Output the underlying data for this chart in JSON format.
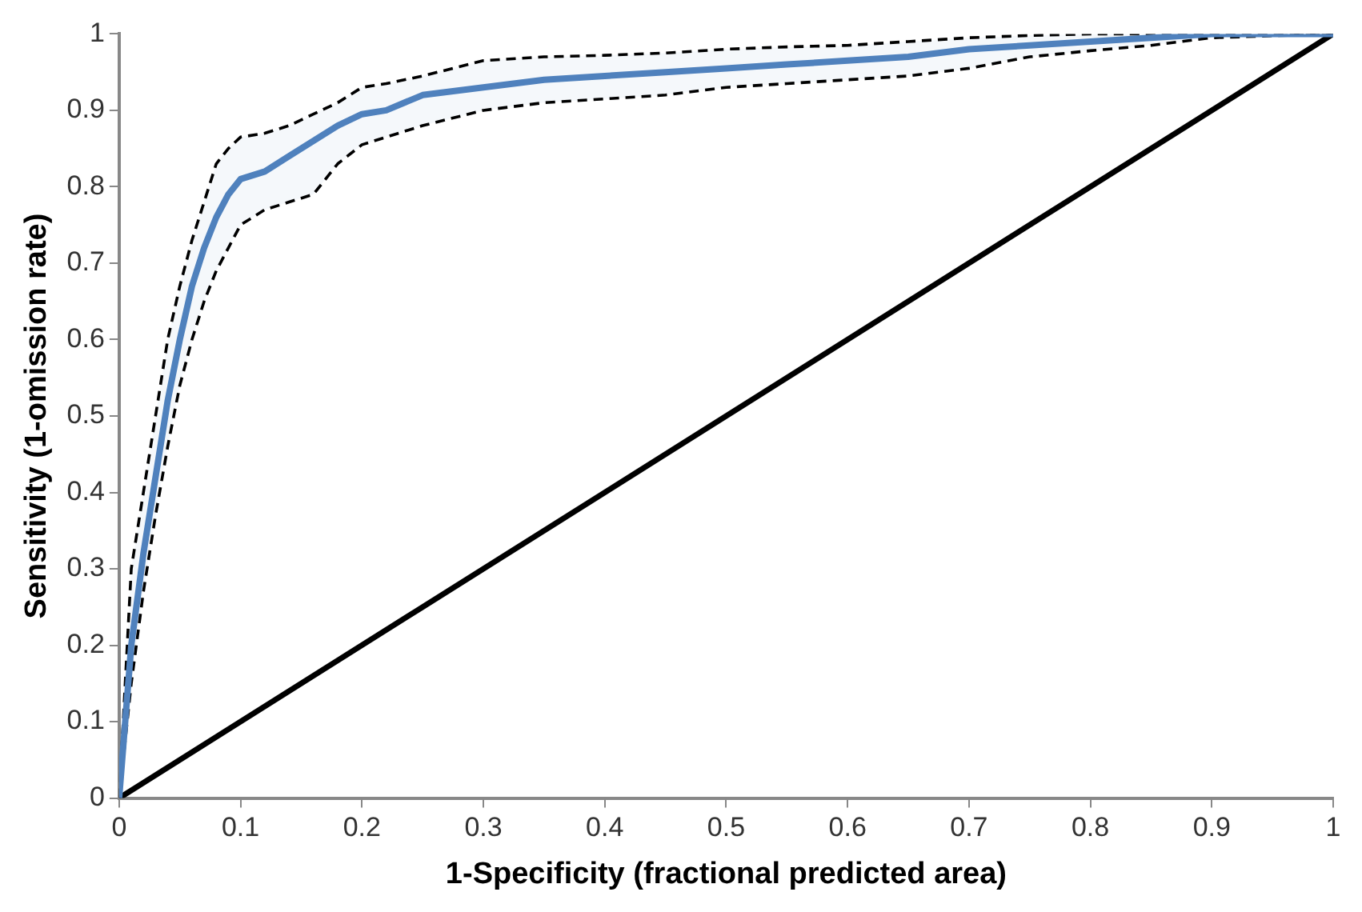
{
  "chart_data": {
    "type": "line",
    "xlabel": "1-Specificity (fractional predicted area)",
    "ylabel": "Sensitivity (1-omission rate)",
    "xlim": [
      0,
      1
    ],
    "ylim": [
      0,
      1
    ],
    "xticks": [
      0,
      0.1,
      0.2,
      0.3,
      0.4,
      0.5,
      0.6,
      0.7,
      0.8,
      0.9,
      1
    ],
    "yticks": [
      0,
      0.1,
      0.2,
      0.3,
      0.4,
      0.5,
      0.6,
      0.7,
      0.8,
      0.9,
      1
    ],
    "grid": false,
    "legend": false,
    "marker": "none",
    "series": [
      {
        "color": "#4f81bd",
        "line_style": "solid",
        "x": [
          0,
          0.01,
          0.02,
          0.03,
          0.04,
          0.05,
          0.06,
          0.07,
          0.08,
          0.09,
          0.1,
          0.12,
          0.14,
          0.16,
          0.18,
          0.2,
          0.22,
          0.25,
          0.3,
          0.35,
          0.4,
          0.45,
          0.5,
          0.55,
          0.6,
          0.65,
          0.7,
          0.75,
          0.8,
          0.85,
          0.9,
          1
        ],
        "values": [
          0,
          0.2,
          0.32,
          0.42,
          0.52,
          0.6,
          0.67,
          0.72,
          0.76,
          0.79,
          0.81,
          0.82,
          0.84,
          0.86,
          0.88,
          0.895,
          0.9,
          0.92,
          0.93,
          0.94,
          0.945,
          0.95,
          0.955,
          0.96,
          0.965,
          0.97,
          0.98,
          0.985,
          0.99,
          0.995,
          1,
          1
        ],
        "upper": [
          0,
          0.3,
          0.4,
          0.5,
          0.6,
          0.67,
          0.73,
          0.78,
          0.83,
          0.85,
          0.865,
          0.87,
          0.88,
          0.895,
          0.91,
          0.93,
          0.935,
          0.945,
          0.965,
          0.97,
          0.972,
          0.975,
          0.98,
          0.983,
          0.985,
          0.99,
          0.995,
          0.998,
          1,
          1,
          1,
          1
        ],
        "lower": [
          0,
          0.15,
          0.27,
          0.37,
          0.46,
          0.54,
          0.6,
          0.65,
          0.69,
          0.72,
          0.75,
          0.77,
          0.78,
          0.79,
          0.83,
          0.855,
          0.865,
          0.88,
          0.9,
          0.91,
          0.915,
          0.92,
          0.93,
          0.935,
          0.94,
          0.945,
          0.955,
          0.97,
          0.978,
          0.985,
          0.995,
          1
        ]
      },
      {
        "color": "#000000",
        "line_style": "solid",
        "x": [
          0,
          1
        ],
        "values": [
          0,
          1
        ]
      }
    ]
  }
}
